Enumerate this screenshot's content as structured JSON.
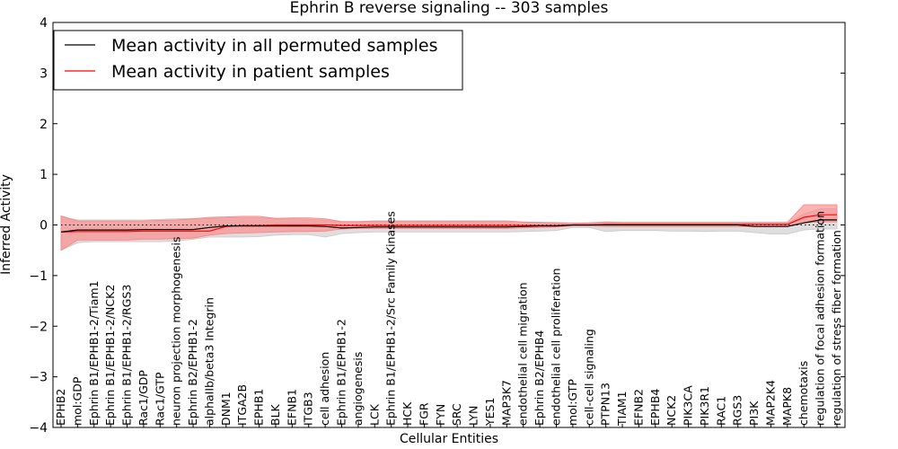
{
  "chart_data": {
    "type": "line",
    "title": "Ephrin B reverse signaling -- 303 samples",
    "xlabel": "Cellular Entities",
    "ylabel": "Inferred Activity",
    "ylim": [
      -4,
      4
    ],
    "yticks": [
      -4,
      -3,
      -2,
      -1,
      0,
      1,
      2,
      3,
      4
    ],
    "ytick_labels": [
      "−4",
      "−3",
      "−2",
      "−1",
      "0",
      "1",
      "2",
      "3",
      "4"
    ],
    "legend_position": "top-left",
    "categories": [
      "EPHB2",
      "mol:GDP",
      "Ephrin B1/EPHB1-2/Tiam1",
      "Ephrin B1/EPHB1-2/NCK2",
      "Ephrin B1/EPHB1-2/RGS3",
      "Rac1/GDP",
      "Rac1/GTP",
      "neuron projection morphogenesis",
      "Ephrin B2/EPHB1-2",
      "alphaIIb/beta3 Integrin",
      "DNM1",
      "ITGA2B",
      "EPHB1",
      "BLK",
      "EFNB1",
      "ITGB3",
      "cell adhesion",
      "Ephrin B1/EPHB1-2",
      "angiogenesis",
      "LCK",
      "Ephrin B1/EPHB1-2/Src Family Kinases",
      "HCK",
      "FGR",
      "FYN",
      "SRC",
      "LYN",
      "YES1",
      "MAP3K7",
      "endothelial cell migration",
      "Ephrin B2/EPHB4",
      "endothelial cell proliferation",
      "mol:GTP",
      "cell-cell signaling",
      "PTPN13",
      "TIAM1",
      "EFNB2",
      "EPHB4",
      "NCK2",
      "PIK3CA",
      "PIK3R1",
      "RAC1",
      "RGS3",
      "PI3K",
      "MAP2K4",
      "MAPK8",
      "chemotaxis",
      "regulation of focal adhesion formation",
      "regulation of stress fiber formation"
    ],
    "series": [
      {
        "name": "Mean activity in all permuted samples",
        "color": "#000000",
        "values": [
          -0.14,
          -0.1,
          -0.1,
          -0.1,
          -0.1,
          -0.09,
          -0.09,
          -0.09,
          -0.09,
          -0.05,
          -0.02,
          -0.02,
          -0.02,
          -0.02,
          -0.02,
          -0.02,
          -0.03,
          -0.06,
          -0.05,
          -0.04,
          -0.04,
          -0.04,
          -0.04,
          -0.04,
          -0.04,
          -0.04,
          -0.04,
          -0.04,
          -0.03,
          -0.02,
          -0.02,
          0.0,
          0.0,
          0.0,
          0.0,
          0.0,
          0.0,
          0.0,
          0.0,
          0.0,
          0.0,
          0.0,
          -0.03,
          -0.03,
          -0.03,
          0.04,
          0.1,
          0.1
        ],
        "band_lower": [
          -0.5,
          -0.35,
          -0.33,
          -0.33,
          -0.33,
          -0.33,
          -0.33,
          -0.32,
          -0.28,
          -0.24,
          -0.24,
          -0.24,
          -0.23,
          -0.2,
          -0.19,
          -0.19,
          -0.24,
          -0.17,
          -0.15,
          -0.14,
          -0.14,
          -0.14,
          -0.14,
          -0.14,
          -0.14,
          -0.14,
          -0.14,
          -0.14,
          -0.13,
          -0.12,
          -0.11,
          -0.05,
          -0.05,
          -0.13,
          -0.11,
          -0.11,
          -0.11,
          -0.12,
          -0.12,
          -0.13,
          -0.12,
          -0.12,
          -0.15,
          -0.18,
          -0.18,
          -0.1,
          -0.08,
          -0.08
        ],
        "band_upper": [
          0.16,
          0.1,
          0.1,
          0.1,
          0.1,
          0.1,
          0.11,
          0.12,
          0.13,
          0.13,
          0.14,
          0.14,
          0.14,
          0.13,
          0.12,
          0.11,
          0.09,
          0.06,
          0.06,
          0.07,
          0.07,
          0.07,
          0.07,
          0.07,
          0.07,
          0.07,
          0.07,
          0.07,
          0.06,
          0.05,
          0.05,
          0.04,
          0.04,
          0.05,
          0.05,
          0.05,
          0.05,
          0.05,
          0.05,
          0.05,
          0.05,
          0.05,
          0.03,
          0.03,
          0.03,
          0.22,
          0.32,
          0.32
        ],
        "band_color": "#c8c8c8"
      },
      {
        "name": "Mean activity in patient samples",
        "color": "#ff0000",
        "values": [
          -0.14,
          -0.13,
          -0.13,
          -0.13,
          -0.13,
          -0.12,
          -0.12,
          -0.12,
          -0.12,
          -0.12,
          -0.03,
          -0.01,
          -0.01,
          0.0,
          0.0,
          0.0,
          0.0,
          -0.01,
          -0.01,
          -0.01,
          -0.01,
          -0.01,
          -0.01,
          -0.01,
          -0.01,
          -0.01,
          -0.01,
          -0.01,
          -0.01,
          -0.01,
          -0.01,
          0.0,
          0.0,
          0.01,
          0.01,
          0.01,
          0.01,
          0.01,
          0.01,
          0.01,
          0.01,
          0.01,
          0.01,
          0.01,
          0.01,
          0.15,
          0.2,
          0.2
        ],
        "band_lower": [
          -0.5,
          -0.3,
          -0.3,
          -0.3,
          -0.3,
          -0.28,
          -0.28,
          -0.27,
          -0.26,
          -0.2,
          -0.17,
          -0.16,
          -0.15,
          -0.14,
          -0.13,
          -0.13,
          -0.12,
          -0.08,
          -0.07,
          -0.07,
          -0.07,
          -0.07,
          -0.07,
          -0.07,
          -0.07,
          -0.07,
          -0.07,
          -0.07,
          -0.06,
          -0.05,
          -0.04,
          -0.02,
          -0.02,
          -0.03,
          -0.03,
          -0.03,
          -0.03,
          -0.03,
          -0.03,
          -0.03,
          -0.03,
          -0.03,
          -0.03,
          -0.03,
          -0.03,
          0.04,
          0.06,
          0.06
        ],
        "band_upper": [
          0.18,
          0.08,
          0.08,
          0.08,
          0.08,
          0.08,
          0.09,
          0.1,
          0.12,
          0.15,
          0.16,
          0.17,
          0.17,
          0.13,
          0.14,
          0.14,
          0.12,
          0.07,
          0.07,
          0.08,
          0.08,
          0.08,
          0.08,
          0.08,
          0.08,
          0.08,
          0.08,
          0.08,
          0.06,
          0.05,
          0.04,
          0.03,
          0.04,
          0.06,
          0.05,
          0.05,
          0.05,
          0.05,
          0.05,
          0.05,
          0.05,
          0.05,
          0.05,
          0.05,
          0.05,
          0.4,
          0.4,
          0.4
        ],
        "band_color": "#ff8080"
      }
    ],
    "reference_line": {
      "value": 0,
      "style": "dotted",
      "color": "#000000"
    }
  }
}
